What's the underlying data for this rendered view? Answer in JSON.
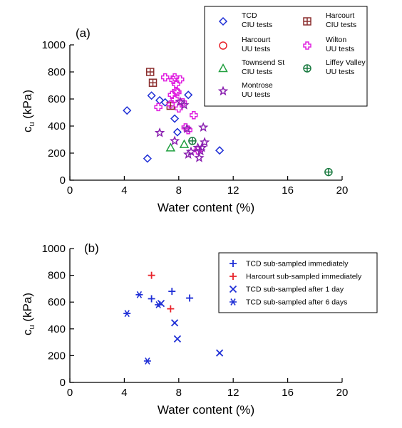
{
  "chart_data": [
    {
      "type": "scatter",
      "panel_label": "(a)",
      "xlabel": "Water content (%)",
      "ylabel_main": "c",
      "ylabel_sub": "u",
      "ylabel_unit": " (kPa)",
      "xlim": [
        0,
        20
      ],
      "ylim": [
        0,
        1000
      ],
      "xticks": [
        0,
        4,
        8,
        12,
        16,
        20
      ],
      "yticks": [
        0,
        200,
        400,
        600,
        800,
        1000
      ],
      "grid": false,
      "legend_position": "top-right",
      "series": [
        {
          "key": "tcd-ciu",
          "name_lines": [
            "TCD",
            "CIU tests"
          ],
          "marker": "diamond-open",
          "color": "#1f2fd6",
          "points": [
            [
              4.2,
              515
            ],
            [
              5.7,
              160
            ],
            [
              6.0,
              625
            ],
            [
              6.6,
              590
            ],
            [
              7.0,
              575
            ],
            [
              7.7,
              455
            ],
            [
              7.9,
              355
            ],
            [
              8.7,
              630
            ],
            [
              11.0,
              220
            ]
          ]
        },
        {
          "key": "harcourt-ciu",
          "name_lines": [
            "Harcourt",
            "CIU tests"
          ],
          "marker": "square-plus",
          "color": "#8b2e2e",
          "points": [
            [
              5.9,
              800
            ],
            [
              6.1,
              720
            ],
            [
              7.4,
              550
            ]
          ]
        },
        {
          "key": "harcourt-uu",
          "name_lines": [
            "Harcourt",
            "UU tests"
          ],
          "marker": "circle-open",
          "color": "#e8232b",
          "points": []
        },
        {
          "key": "wilton-uu",
          "name_lines": [
            "Wilton",
            "UU tests"
          ],
          "marker": "plus-open",
          "color": "#e020e0",
          "points": [
            [
              6.5,
              540
            ],
            [
              7.0,
              760
            ],
            [
              7.4,
              560
            ],
            [
              7.5,
              630
            ],
            [
              7.6,
              740
            ],
            [
              7.7,
              760
            ],
            [
              7.7,
              600
            ],
            [
              7.8,
              710
            ],
            [
              7.8,
              660
            ],
            [
              7.9,
              650
            ],
            [
              8.0,
              530
            ],
            [
              8.1,
              745
            ],
            [
              8.3,
              575
            ],
            [
              8.5,
              390
            ],
            [
              8.7,
              370
            ],
            [
              9.1,
              480
            ],
            [
              9.4,
              220
            ]
          ]
        },
        {
          "key": "townsend-ciu",
          "name_lines": [
            "Townsend St",
            "CIU tests"
          ],
          "marker": "triangle-open",
          "color": "#22a040",
          "points": [
            [
              7.4,
              240
            ],
            [
              8.4,
              265
            ]
          ]
        },
        {
          "key": "liffey-uu",
          "name_lines": [
            "Liffey Valley",
            "UU tests"
          ],
          "marker": "circle-plus",
          "color": "#1a7a40",
          "points": [
            [
              9.0,
              290
            ],
            [
              19.0,
              60
            ]
          ]
        },
        {
          "key": "montrose-uu",
          "name_lines": [
            "Montrose",
            "UU tests"
          ],
          "marker": "star",
          "color": "#8a20b0",
          "points": [
            [
              6.6,
              350
            ],
            [
              7.7,
              290
            ],
            [
              8.1,
              580
            ],
            [
              8.4,
              555
            ],
            [
              8.6,
              380
            ],
            [
              8.7,
              190
            ],
            [
              8.9,
              210
            ],
            [
              9.4,
              240
            ],
            [
              9.5,
              165
            ],
            [
              9.7,
              240
            ],
            [
              9.8,
              390
            ],
            [
              9.9,
              280
            ],
            [
              9.6,
              215
            ]
          ]
        }
      ]
    },
    {
      "type": "scatter",
      "panel_label": "(b)",
      "xlabel": "Water content (%)",
      "ylabel_main": "c",
      "ylabel_sub": "u",
      "ylabel_unit": " (kPa)",
      "xlim": [
        0,
        20
      ],
      "ylim": [
        0,
        1000
      ],
      "xticks": [
        0,
        4,
        8,
        12,
        16,
        20
      ],
      "yticks": [
        0,
        200,
        400,
        600,
        800,
        1000
      ],
      "grid": false,
      "legend_position": "top-right",
      "series": [
        {
          "key": "tcd-immediate",
          "name": "TCD sub-sampled immediately",
          "marker": "plus",
          "color": "#1f2fd6",
          "points": [
            [
              6.0,
              625
            ],
            [
              7.5,
              680
            ],
            [
              8.8,
              630
            ]
          ]
        },
        {
          "key": "harcourt-immediate",
          "name": "Harcourt sub-sampled immediately",
          "marker": "plus",
          "color": "#e8232b",
          "points": [
            [
              6.0,
              800
            ],
            [
              7.4,
              550
            ]
          ]
        },
        {
          "key": "tcd-1day",
          "name": "TCD sub-sampled after 1 day",
          "marker": "cross",
          "color": "#1f2fd6",
          "points": [
            [
              6.7,
              590
            ],
            [
              7.7,
              445
            ],
            [
              7.9,
              325
            ],
            [
              11.0,
              220
            ]
          ]
        },
        {
          "key": "tcd-6days",
          "name": "TCD sub-sampled after 6 days",
          "marker": "asterisk",
          "color": "#1f2fd6",
          "points": [
            [
              4.2,
              515
            ],
            [
              5.1,
              655
            ],
            [
              5.7,
              160
            ],
            [
              6.5,
              580
            ]
          ]
        }
      ]
    }
  ]
}
